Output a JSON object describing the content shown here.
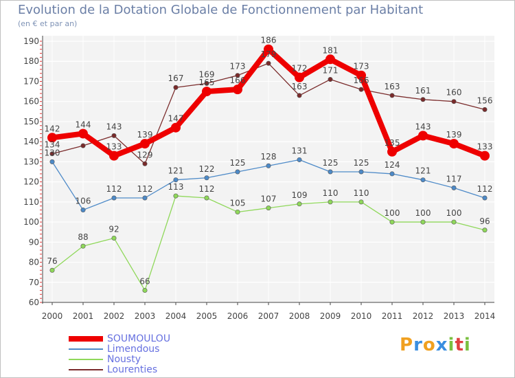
{
  "title": "Evolution de la Dotation Globale de Fonctionnement par Habitant",
  "subtitle": "(en € et par an)",
  "brand": {
    "letters": [
      "P",
      "r",
      "o",
      "x",
      "i",
      "t",
      "i"
    ],
    "colors": [
      "#f0a020",
      "#3a8ee0",
      "#f0a020",
      "#3a8ee0",
      "#7ac040",
      "#e04040",
      "#7ac040"
    ]
  },
  "chart_data": {
    "type": "line",
    "title": "Evolution de la Dotation Globale de Fonctionnement par Habitant",
    "subtitle": "(en € et par an)",
    "xlabel": "",
    "ylabel": "",
    "x": [
      "2000",
      "2001",
      "2002",
      "2003",
      "2004",
      "2005",
      "2006",
      "2007",
      "2008",
      "2009",
      "2010",
      "2011",
      "2012",
      "2013",
      "2014"
    ],
    "ylim": [
      60,
      190
    ],
    "yticks": [
      60,
      70,
      80,
      90,
      100,
      110,
      120,
      130,
      140,
      150,
      160,
      170,
      180,
      190
    ],
    "grid": true,
    "legend_position": "bottom-left",
    "series": [
      {
        "name": "SOUMOULOU",
        "color": "#ee0000",
        "values": [
          142,
          144,
          133,
          139,
          147,
          165,
          166,
          186,
          172,
          181,
          173,
          135,
          143,
          139,
          133
        ],
        "labels": [
          "142",
          "144",
          "133",
          "139",
          "147",
          "165",
          "166",
          "186",
          "172",
          "181",
          "173",
          "135",
          "143",
          "139",
          "133"
        ]
      },
      {
        "name": "Limendous",
        "color": "#4d8ac8",
        "values": [
          130,
          106,
          112,
          112,
          121,
          122,
          125,
          128,
          131,
          125,
          125,
          124,
          121,
          117,
          112
        ],
        "labels": [
          "130",
          "106",
          "112",
          "112",
          "121",
          "122",
          "125",
          "128",
          "131",
          "125",
          "125",
          "124",
          "121",
          "117",
          "112"
        ]
      },
      {
        "name": "Nousty",
        "color": "#8fd85a",
        "values": [
          76,
          88,
          92,
          66,
          113,
          112,
          105,
          107,
          109,
          110,
          110,
          100,
          100,
          100,
          96
        ],
        "labels": [
          "76",
          "88",
          "92",
          "66",
          "113",
          "112",
          "105",
          "107",
          "109",
          "110",
          "110",
          "100",
          "100",
          "100",
          "96"
        ]
      },
      {
        "name": "Lourenties",
        "color": "#7a2b2b",
        "values": [
          134,
          138,
          143,
          129,
          167,
          169,
          173,
          179,
          163,
          171,
          166,
          163,
          161,
          160,
          156
        ],
        "labels": [
          "134",
          "",
          "143",
          "129",
          "167",
          "169",
          "173",
          "179",
          "163",
          "171",
          "166",
          "163",
          "161",
          "160",
          "156"
        ]
      }
    ]
  }
}
